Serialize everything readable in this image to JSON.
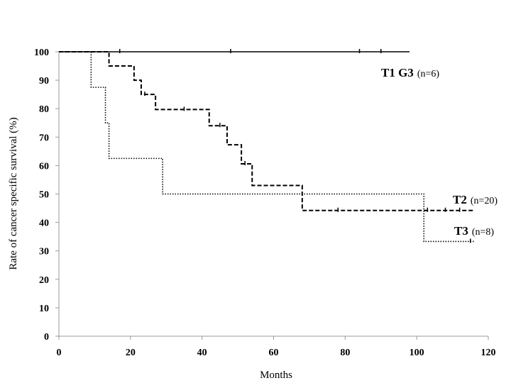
{
  "chart_data": {
    "type": "line",
    "step": true,
    "xlabel": "Months",
    "ylabel": "Rate of cancer specific survival (%)",
    "xlim": [
      0,
      120
    ],
    "ylim": [
      0,
      100
    ],
    "xticks": [
      0,
      20,
      40,
      60,
      80,
      100,
      120
    ],
    "yticks": [
      0,
      10,
      20,
      30,
      40,
      50,
      60,
      70,
      80,
      90,
      100
    ],
    "grid": false,
    "series": [
      {
        "name": "T1 G3",
        "n_label": "(n=6)",
        "style": "solid",
        "x": [
          0,
          98
        ],
        "y": [
          100,
          100
        ],
        "censored_x": [
          17,
          48,
          84,
          90
        ]
      },
      {
        "name": "T2",
        "n_label": "(n=20)",
        "style": "dashed",
        "x": [
          0,
          14,
          21,
          23,
          27,
          42,
          47,
          51,
          54,
          68,
          116
        ],
        "y": [
          100,
          95,
          90,
          85,
          79.7,
          74,
          67.3,
          60.6,
          53,
          44.2,
          44.2
        ],
        "censored_x": [
          24,
          35,
          45,
          52,
          78,
          103,
          108,
          112
        ]
      },
      {
        "name": "T3",
        "n_label": "(n=8)",
        "style": "dotted",
        "x": [
          0,
          9,
          13,
          14,
          29,
          102,
          116
        ],
        "y": [
          100,
          87.5,
          75,
          62.5,
          50,
          33.3,
          33.3
        ],
        "censored_x": [
          115
        ]
      }
    ]
  }
}
